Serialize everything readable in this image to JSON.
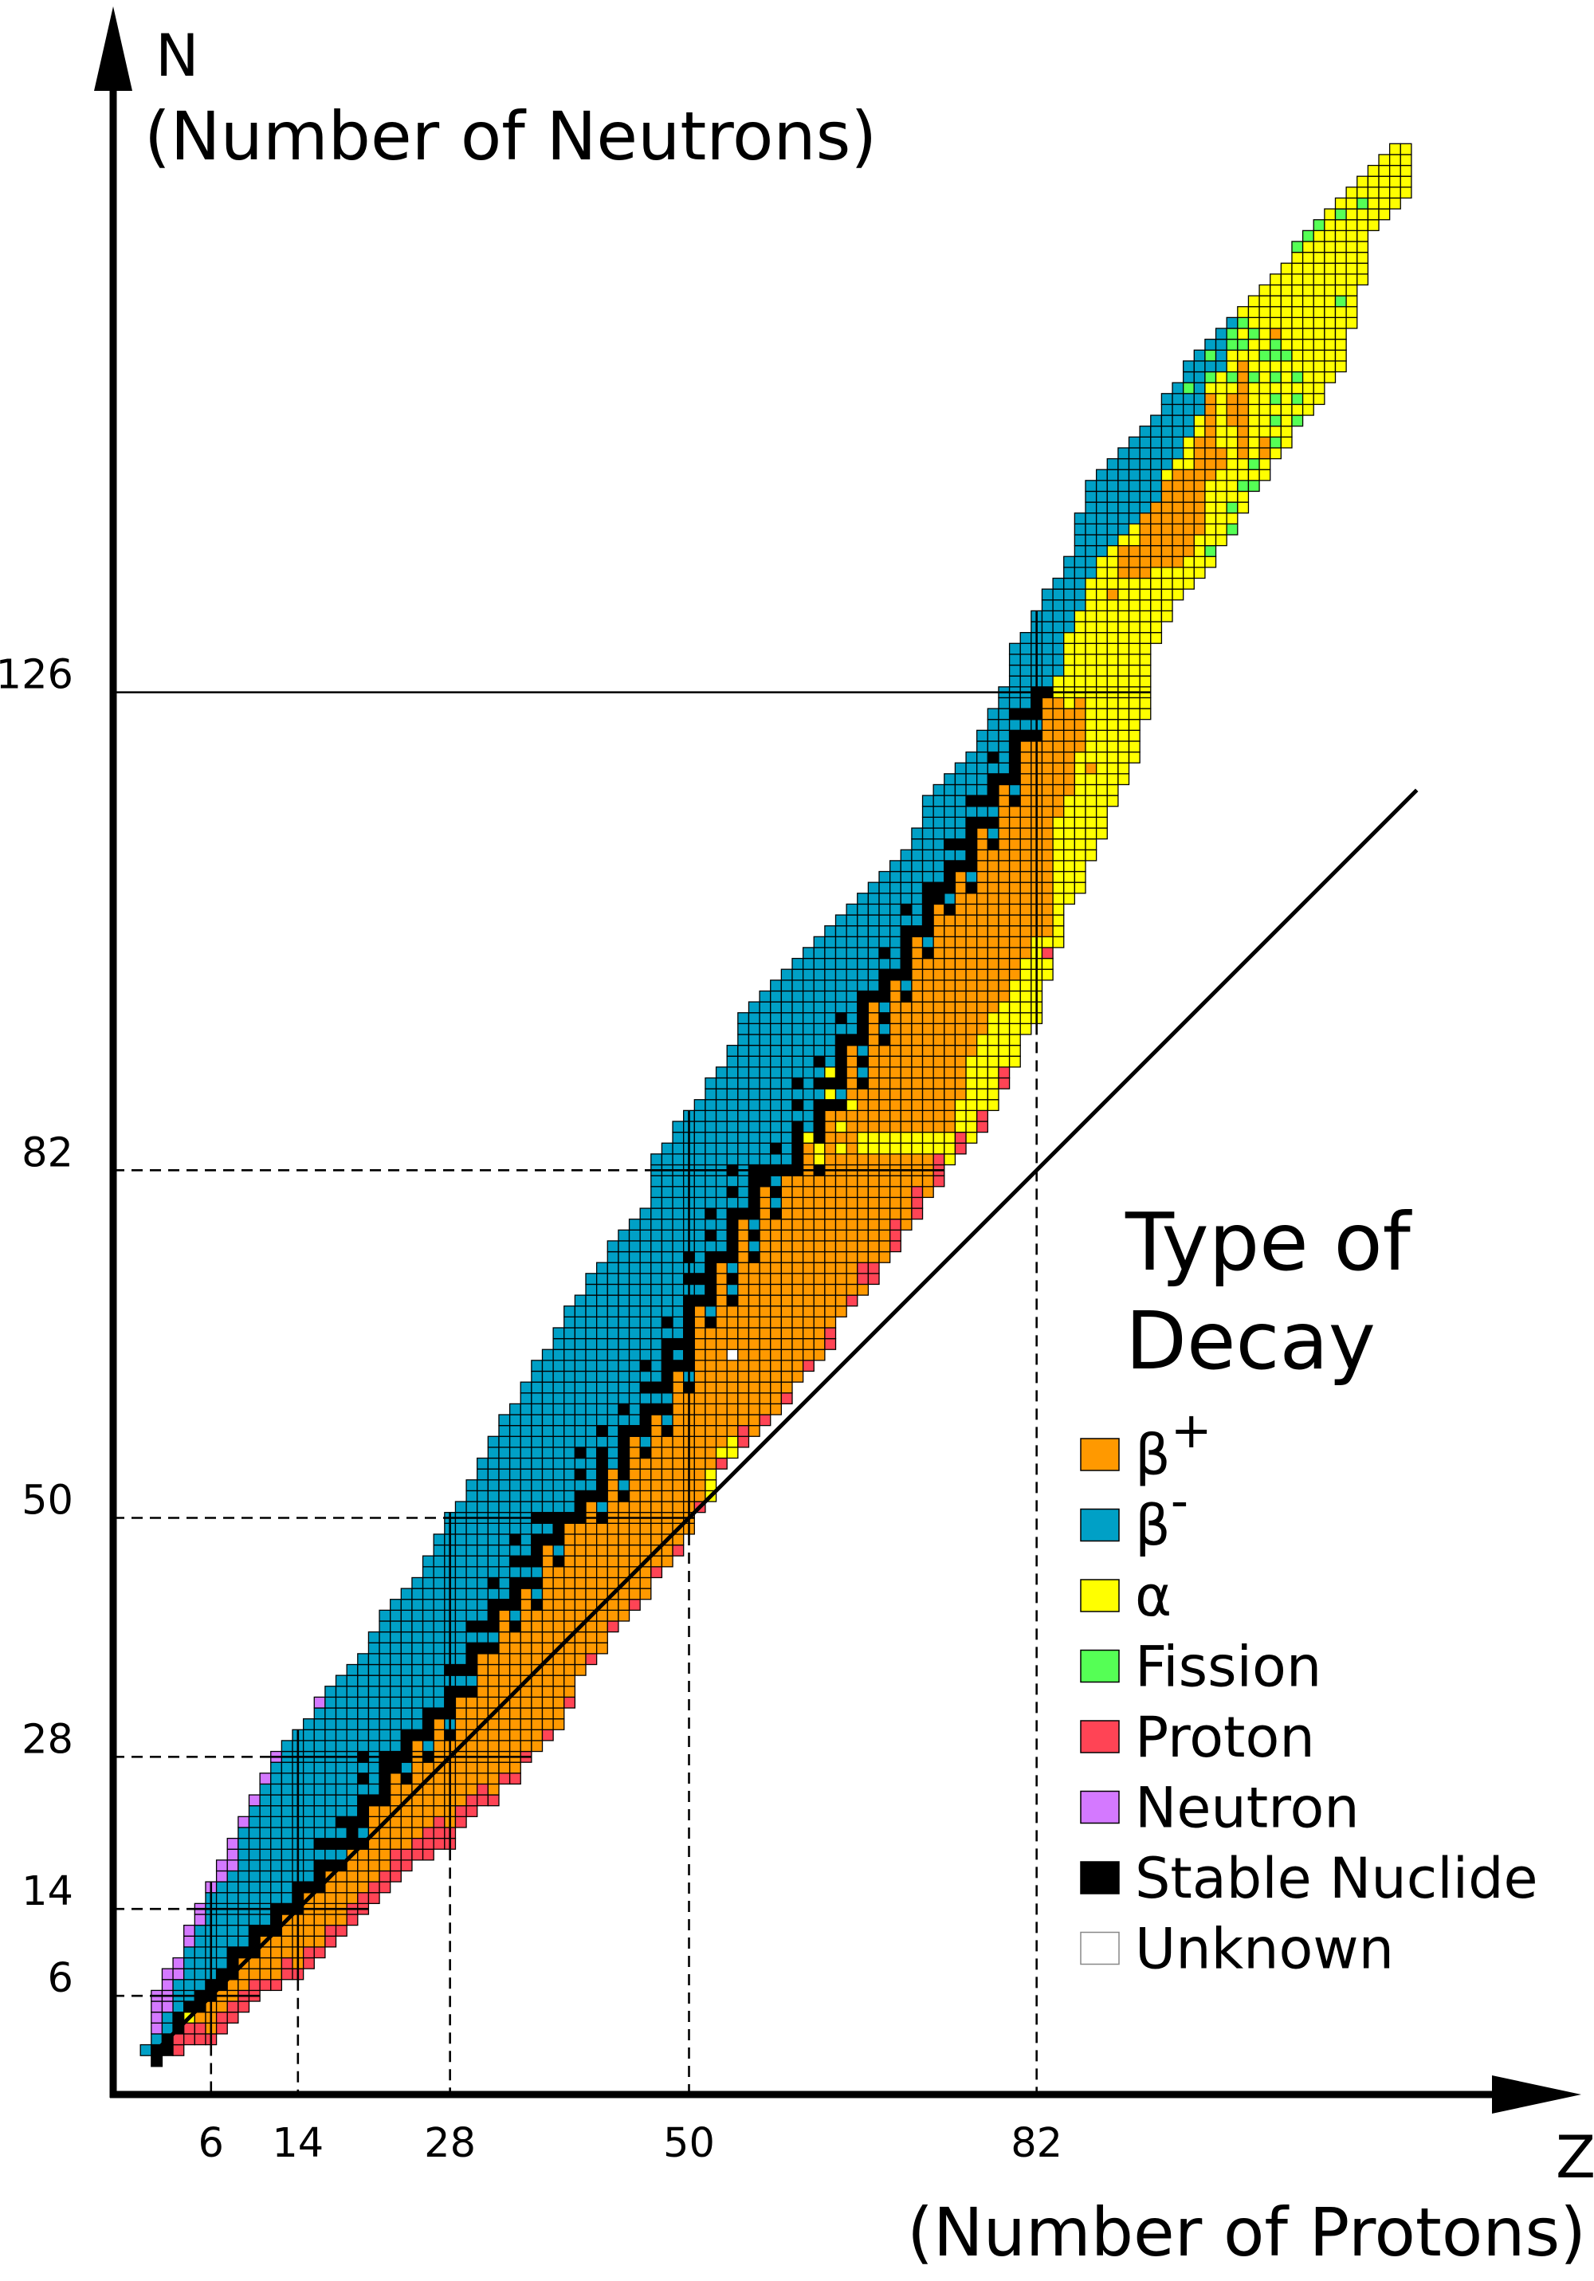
{
  "axes": {
    "y_letter": "N",
    "y_title": "(Number of Neutrons)",
    "x_letter": "Z",
    "x_title": "(Number of Protons)",
    "y_ticks": [
      "6",
      "14",
      "28",
      "50",
      "82",
      "126"
    ],
    "x_ticks": [
      "6",
      "14",
      "28",
      "50",
      "82"
    ]
  },
  "legend": {
    "title_line1": "Type of",
    "title_line2": "Decay",
    "items": [
      {
        "type": "b+",
        "label": "β",
        "sup": "+"
      },
      {
        "type": "b-",
        "label": "β",
        "sup": "-"
      },
      {
        "type": "a",
        "label": "α",
        "sup": ""
      },
      {
        "type": "f",
        "label": "Fission",
        "sup": ""
      },
      {
        "type": "p",
        "label": "Proton",
        "sup": ""
      },
      {
        "type": "n",
        "label": "Neutron",
        "sup": ""
      },
      {
        "type": "s",
        "label": "Stable Nuclide",
        "sup": ""
      },
      {
        "type": "u",
        "label": "Unknown",
        "sup": ""
      }
    ]
  },
  "chart_data": {
    "type": "heatmap",
    "xlabel": "Z (Number of Protons)",
    "ylabel": "N (Number of Neutrons)",
    "colors": {
      "b+": "#FF9900",
      "b-": "#00A0C6",
      "a": "#FFFF00",
      "f": "#55FF55",
      "p": "#FF4455",
      "n": "#D479FF",
      "s": "#000000",
      "u": "#FFFFFF"
    },
    "magic_numbers_n": [
      6,
      14,
      28,
      50,
      82,
      126
    ],
    "magic_numbers_z": [
      6,
      14,
      28,
      50,
      82
    ],
    "solid_full_n": [
      126
    ],
    "reference_line": "N = Z",
    "n_min": [
      1,
      0,
      1,
      1,
      2,
      2,
      2,
      3,
      4,
      5,
      6,
      7,
      7,
      8,
      8,
      9,
      10,
      11,
      12,
      13,
      14,
      15,
      16,
      17,
      18,
      19,
      19,
      20,
      20,
      22,
      23,
      24,
      24,
      26,
      26,
      28,
      29,
      30,
      31,
      33,
      36,
      37,
      38,
      40,
      41,
      42,
      43,
      45,
      46,
      47,
      49,
      51,
      52,
      55,
      56,
      57,
      58,
      59,
      60,
      61,
      63,
      64,
      65,
      66,
      69,
      70,
      71,
      72,
      74,
      75,
      77,
      78,
      80,
      81,
      83,
      84,
      85,
      86,
      88,
      90,
      92,
      95,
      96,
      100,
      103,
      107,
      108,
      111,
      113,
      116,
      118,
      120,
      124,
      131,
      133,
      135,
      136,
      137,
      138,
      140,
      141,
      143,
      145,
      146,
      148,
      149,
      151,
      152,
      153,
      155,
      156,
      160,
      164,
      169,
      170,
      171,
      172
    ],
    "n_max": [
      1,
      6,
      8,
      9,
      12,
      14,
      16,
      18,
      20,
      22,
      24,
      26,
      28,
      29,
      30,
      31,
      33,
      34,
      35,
      36,
      37,
      39,
      41,
      42,
      43,
      44,
      46,
      48,
      50,
      51,
      53,
      55,
      57,
      59,
      60,
      62,
      64,
      65,
      67,
      69,
      70,
      72,
      73,
      75,
      76,
      77,
      78,
      83,
      84,
      86,
      87,
      88,
      90,
      91,
      93,
      96,
      97,
      98,
      99,
      100,
      101,
      102,
      103,
      104,
      105,
      106,
      107,
      108,
      109,
      110,
      111,
      113,
      116,
      117,
      118,
      119,
      120,
      122,
      124,
      126,
      130,
      131,
      133,
      135,
      136,
      138,
      142,
      145,
      146,
      147,
      148,
      149,
      150,
      151,
      153,
      154,
      156,
      157,
      158,
      159,
      160,
      161,
      162,
      163,
      164,
      165,
      167,
      168,
      169,
      170,
      171,
      172,
      173,
      174,
      175,
      176,
      176
    ],
    "stable": [
      [],
      [
        0,
        1
      ],
      [
        1,
        2
      ],
      [
        3,
        4
      ],
      [
        5
      ],
      [
        5,
        6
      ],
      [
        6,
        7
      ],
      [
        7,
        8
      ],
      [
        8,
        9,
        10
      ],
      [
        10
      ],
      [
        10,
        11,
        12
      ],
      [
        12
      ],
      [
        12,
        13,
        14
      ],
      [
        14
      ],
      [
        14,
        15,
        16
      ],
      [
        16
      ],
      [
        16,
        17,
        18,
        20
      ],
      [
        18,
        20
      ],
      [
        18,
        20,
        22
      ],
      [
        20,
        21,
        22
      ],
      [
        20,
        22,
        23,
        24,
        26,
        28
      ],
      [
        24
      ],
      [
        24,
        25,
        26,
        27,
        28
      ],
      [
        27,
        28
      ],
      [
        26,
        28,
        29,
        30
      ],
      [
        30
      ],
      [
        28,
        30,
        31,
        32
      ],
      [
        32
      ],
      [
        30,
        32,
        33,
        34,
        36
      ],
      [
        34,
        36
      ],
      [
        34,
        36,
        37,
        38,
        40
      ],
      [
        38,
        40
      ],
      [
        38,
        40,
        41,
        42,
        44
      ],
      [
        42
      ],
      [
        40,
        42,
        43,
        44,
        46,
        48
      ],
      [
        44,
        46
      ],
      [
        42,
        44,
        46,
        47,
        48,
        50
      ],
      [
        48,
        50
      ],
      [
        46,
        48,
        49,
        50
      ],
      [
        50
      ],
      [
        50,
        51,
        52,
        54,
        56
      ],
      [
        52
      ],
      [
        50,
        52,
        53,
        54,
        55,
        56,
        58
      ],
      [],
      [
        52,
        54,
        55,
        56,
        57,
        58,
        60
      ],
      [
        58
      ],
      [
        56,
        58,
        59,
        60,
        62,
        64
      ],
      [
        60,
        62
      ],
      [
        58,
        60,
        62,
        63,
        64,
        65,
        66,
        68
      ],
      [
        64,
        66
      ],
      [
        62,
        64,
        65,
        66,
        67,
        68,
        69,
        70,
        72,
        74
      ],
      [
        70,
        72
      ],
      [
        68,
        70,
        71,
        72,
        73,
        74,
        76,
        78
      ],
      [
        74
      ],
      [
        70,
        72,
        74,
        75,
        76,
        77,
        78,
        80,
        82
      ],
      [
        78
      ],
      [
        74,
        76,
        78,
        79,
        80,
        81,
        82
      ],
      [
        81,
        82
      ],
      [
        78,
        80,
        82,
        84
      ],
      [
        82
      ],
      [
        82,
        83,
        84,
        85,
        86,
        88,
        90
      ],
      [],
      [
        82,
        85,
        86,
        87,
        88,
        90,
        92
      ],
      [
        88,
        90
      ],
      [
        88,
        90,
        91,
        92,
        93,
        94,
        96
      ],
      [
        94
      ],
      [
        90,
        92,
        94,
        95,
        96,
        97,
        98
      ],
      [
        98
      ],
      [
        94,
        96,
        98,
        99,
        100,
        102
      ],
      [
        100
      ],
      [
        98,
        100,
        101,
        102,
        103,
        104,
        106
      ],
      [
        104
      ],
      [
        102,
        104,
        105,
        106,
        107,
        108
      ],
      [
        107,
        108
      ],
      [
        106,
        108,
        109,
        110,
        112
      ],
      [
        110,
        112
      ],
      [
        108,
        110,
        111,
        112,
        113,
        114,
        116
      ],
      [
        114,
        116
      ],
      [
        112,
        114,
        116,
        117,
        118,
        120
      ],
      [
        118
      ],
      [
        116,
        118,
        119,
        120,
        121,
        122,
        124
      ],
      [
        122,
        124
      ],
      [
        122,
        124,
        125,
        126
      ],
      [
        126
      ]
    ],
    "no_stable_split": {
      "0": 0,
      "43": 54,
      "61": 84
    },
    "proton_count": [
      0,
      0,
      0,
      2,
      2,
      2,
      1,
      2,
      2,
      2,
      2,
      1,
      1,
      2,
      1,
      2,
      1,
      2,
      1,
      2,
      2,
      2,
      2,
      3,
      2,
      2,
      3,
      3,
      2,
      2,
      2,
      2,
      1,
      1,
      1,
      1,
      0,
      1,
      0,
      1,
      0,
      1,
      0,
      1,
      0,
      1,
      0,
      1,
      0,
      1,
      0,
      1,
      0,
      1,
      0,
      2,
      0,
      1,
      0,
      1,
      0,
      1,
      0,
      2,
      0,
      1,
      0,
      2,
      0,
      3,
      0,
      3,
      0,
      3,
      0,
      2,
      0,
      2,
      0,
      2,
      0,
      0,
      0,
      0
    ],
    "neutron_count": [
      0,
      4,
      4,
      2,
      2,
      2,
      1,
      2,
      3,
      1,
      1,
      1,
      1,
      0,
      0,
      0,
      1
    ],
    "alpha_low_top": {
      "52": 54,
      "53": 56,
      "54": 57,
      "74": 85,
      "75": 88,
      "76": 92,
      "77": 94,
      "78": 96,
      "79": 97,
      "80": 99,
      "81": 101,
      "82": 103,
      "83": 103
    },
    "heavy": [
      [
        84,
        115,
        125,
        128
      ],
      [
        85,
        117,
        124,
        132
      ],
      [
        86,
        121,
        125,
        134
      ],
      [
        87,
        119,
        119,
        137
      ],
      [
        88,
        null,
        null,
        139
      ],
      [
        89,
        135,
        135,
        140
      ],
      [
        90,
        137,
        139,
        141
      ],
      [
        91,
        137,
        139,
        142
      ],
      [
        92,
        137,
        142,
        143
      ],
      [
        93,
        138,
        143,
        144
      ],
      [
        94,
        138,
        145,
        147
      ],
      [
        95,
        138,
        146,
        148
      ],
      [
        96,
        139,
        146,
        150
      ],
      [
        97,
        141,
        149,
        152
      ],
      [
        98,
        146,
        153,
        155
      ],
      [
        99,
        147,
        148,
        156
      ],
      [
        100,
        151,
        153,
        159
      ],
      [
        101,
        148,
        156,
        null
      ],
      [
        102,
        147,
        147,
        null
      ],
      [
        103,
        148,
        149,
        null
      ],
      [
        104,
        159,
        159,
        null
      ]
    ],
    "spots": [
      [
        4,
        4,
        "a"
      ],
      [
        54,
        65,
        "u"
      ],
      [
        83,
        102,
        "p"
      ],
      [
        66,
        72,
        "p"
      ],
      [
        66,
        73,
        "p"
      ],
      [
        62,
        83,
        "a"
      ],
      [
        62,
        84,
        "a"
      ],
      [
        64,
        84,
        "a"
      ],
      [
        64,
        86,
        "a"
      ],
      [
        66,
        84,
        "a"
      ],
      [
        66,
        85,
        "a"
      ],
      [
        67,
        84,
        "a"
      ],
      [
        67,
        85,
        "a"
      ],
      [
        68,
        84,
        "a"
      ],
      [
        68,
        85,
        "a"
      ],
      [
        69,
        84,
        "a"
      ],
      [
        69,
        85,
        "a"
      ],
      [
        70,
        84,
        "a"
      ],
      [
        70,
        85,
        "a"
      ],
      [
        71,
        84,
        "a"
      ],
      [
        71,
        85,
        "a"
      ],
      [
        72,
        84,
        "a"
      ],
      [
        72,
        85,
        "a"
      ],
      [
        73,
        84,
        "a"
      ],
      [
        73,
        85,
        "a"
      ],
      [
        63,
        89,
        "a"
      ],
      [
        63,
        91,
        "a"
      ],
      [
        65,
        88,
        "a"
      ],
      [
        61,
        85,
        "a"
      ]
    ],
    "fission": [
      [
        112,
        171
      ],
      [
        110,
        170
      ],
      [
        108,
        169
      ],
      [
        107,
        168
      ],
      [
        106,
        167
      ],
      [
        101,
        160
      ],
      [
        100,
        159
      ],
      [
        100,
        158
      ],
      [
        101,
        158
      ],
      [
        102,
        159
      ],
      [
        103,
        157
      ],
      [
        104,
        158
      ],
      [
        104,
        157
      ],
      [
        105,
        157
      ],
      [
        98,
        157
      ],
      [
        98,
        155
      ],
      [
        100,
        155
      ],
      [
        102,
        155
      ],
      [
        104,
        155
      ],
      [
        106,
        155
      ],
      [
        96,
        154
      ],
      [
        104,
        153
      ],
      [
        106,
        153
      ],
      [
        106,
        151
      ],
      [
        104,
        151
      ],
      [
        104,
        149
      ],
      [
        102,
        147
      ],
      [
        101,
        145
      ],
      [
        102,
        145
      ],
      [
        100,
        143
      ],
      [
        100,
        141
      ],
      [
        98,
        139
      ],
      [
        110,
        162
      ]
    ]
  }
}
